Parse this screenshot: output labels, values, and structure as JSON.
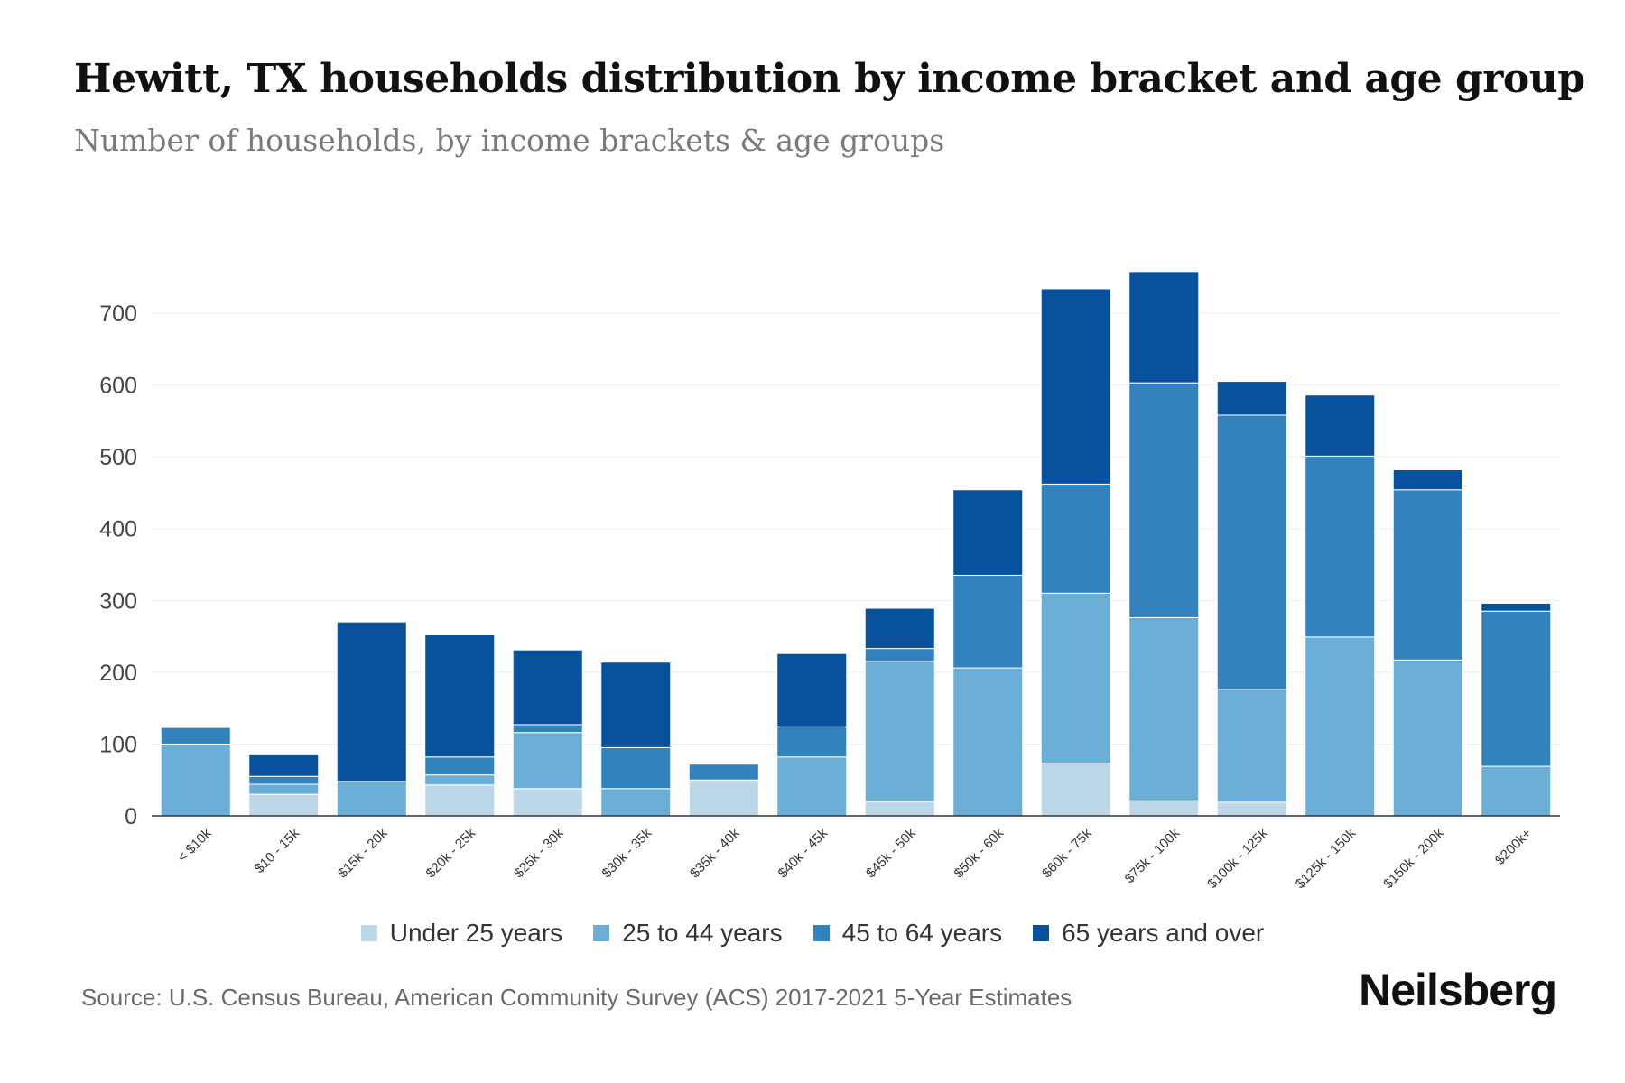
{
  "header": {
    "title": "Hewitt, TX households distribution by income bracket and age group",
    "subtitle": "Number of households, by income brackets & age groups"
  },
  "footer": {
    "source": "Source: U.S. Census Bureau, American Community Survey (ACS) 2017-2021 5-Year Estimates",
    "brand": "Neilsberg"
  },
  "chart_data": {
    "type": "bar",
    "stacked": true,
    "title": "Hewitt, TX households distribution by income bracket and age group",
    "subtitle": "Number of households, by income brackets & age groups",
    "xlabel": "",
    "ylabel": "",
    "ylim": [
      0,
      760
    ],
    "yticks": [
      0,
      100,
      200,
      300,
      400,
      500,
      600,
      700
    ],
    "grid": true,
    "legend_position": "bottom-center",
    "categories": [
      "< $10k",
      "$10 - 15k",
      "$15k - 20k",
      "$20k - 25k",
      "$25k - 30k",
      "$30k - 35k",
      "$35k - 40k",
      "$40k - 45k",
      "$45k - 50k",
      "$50k - 60k",
      "$60k - 75k",
      "$75k - 100k",
      "$100k - 125k",
      "$125k - 150k",
      "$150k - 200k",
      "$200k+"
    ],
    "series": [
      {
        "name": "Under 25 years",
        "color": "#bcd8e8",
        "values": [
          0,
          30,
          0,
          43,
          38,
          0,
          50,
          0,
          20,
          0,
          73,
          21,
          19,
          0,
          0,
          0
        ]
      },
      {
        "name": "25 to 44 years",
        "color": "#6baed6",
        "values": [
          100,
          14,
          48,
          14,
          78,
          38,
          0,
          82,
          195,
          206,
          237,
          255,
          157,
          249,
          217,
          69
        ]
      },
      {
        "name": "45 to 64 years",
        "color": "#3182bd",
        "values": [
          23,
          11,
          0,
          25,
          11,
          57,
          22,
          42,
          18,
          129,
          152,
          327,
          382,
          252,
          237,
          216
        ]
      },
      {
        "name": "65 years and over",
        "color": "#08519c",
        "values": [
          0,
          30,
          222,
          170,
          104,
          119,
          0,
          102,
          56,
          119,
          272,
          155,
          47,
          85,
          28,
          11
        ]
      }
    ]
  }
}
